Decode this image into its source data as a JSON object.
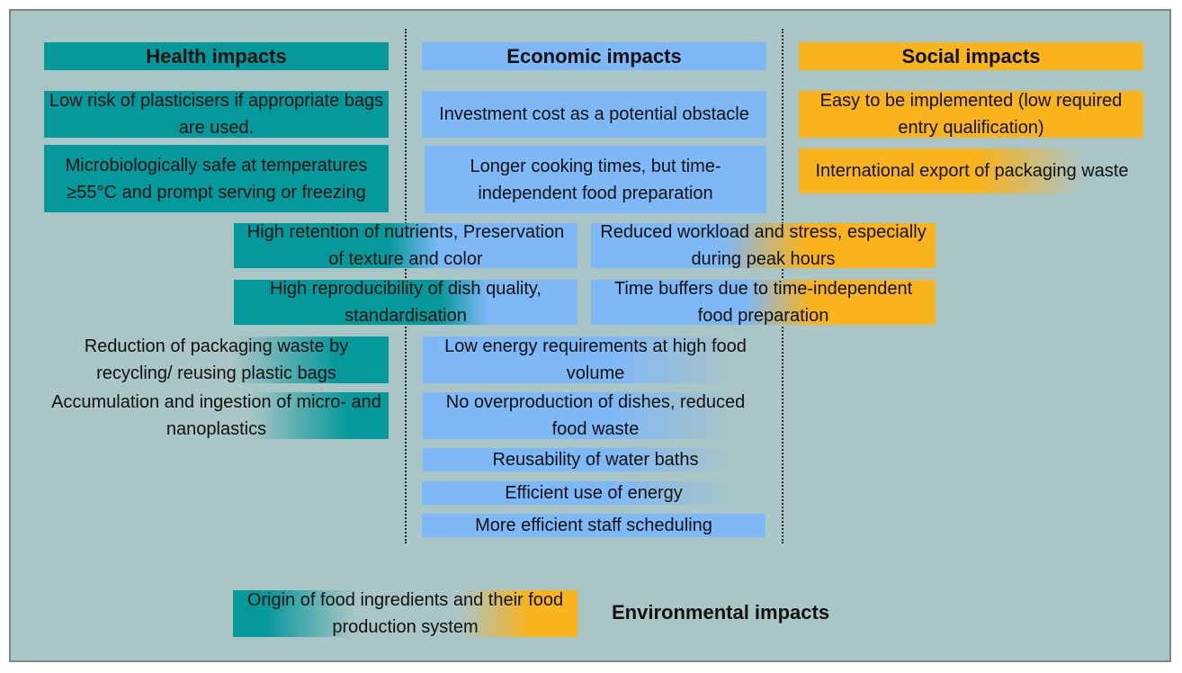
{
  "headers": {
    "health": "Health impacts",
    "economic": "Economic impacts",
    "social": "Social impacts",
    "environmental": "Environmental impacts"
  },
  "health_items": [
    "Low risk of plasticisers if appropriate bags are used.",
    "Microbiologically safe at temperatures ≥55°C and prompt serving or freezing"
  ],
  "economic_items": [
    "Investment cost as a potential obstacle",
    "Longer cooking times, but time-independent food preparation"
  ],
  "social_items": [
    "Easy to be implemented (low required entry qualification)",
    "International export of packaging waste"
  ],
  "health_economic_items": [
    "High retention of nutrients, Preservation of texture and color",
    "High reproducibility of dish quality, standardisation"
  ],
  "economic_social_items": [
    "Reduced workload and stress, especially during peak hours",
    "Time buffers due to time-independent food preparation"
  ],
  "health_environmental_items": [
    "Reduction of packaging waste by recycling/ reusing plastic bags",
    "Accumulation and ingestion of micro- and nanoplastics"
  ],
  "economic_environmental_items": [
    "Low energy requirements at high food volume",
    "No overproduction of dishes, reduced food waste",
    "Reusability of water baths",
    "Efficient use of energy",
    "More efficient staff scheduling"
  ],
  "all_dimensions_items": [
    "Origin of food ingredients and their food production system"
  ],
  "colors": {
    "background": "#a9c5c5",
    "health": "#06999c",
    "economic": "#7fb8f7",
    "social": "#f9b31c",
    "environmental": "#a9c5c5"
  }
}
